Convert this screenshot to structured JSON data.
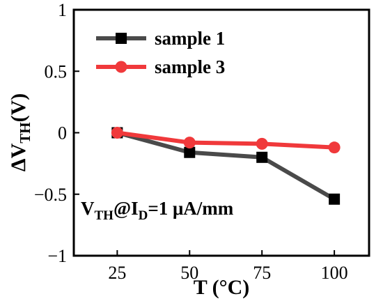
{
  "chart_data": {
    "type": "line",
    "x": [
      25,
      50,
      75,
      100
    ],
    "series": [
      {
        "name": "sample 1",
        "values": [
          0.0,
          -0.16,
          -0.2,
          -0.54
        ],
        "color": "#4a4a4a",
        "marker": "square"
      },
      {
        "name": "sample 3",
        "values": [
          0.0,
          -0.08,
          -0.09,
          -0.12
        ],
        "color": "#f0393b",
        "marker": "circle"
      }
    ],
    "xlim": [
      10,
      112
    ],
    "ylim": [
      -1,
      1
    ],
    "xticks": [
      25,
      50,
      75,
      100
    ],
    "yticks": [
      -1,
      -0.5,
      0,
      0.5,
      1
    ],
    "xtick_labels": [
      "25",
      "50",
      "75",
      "100"
    ],
    "ytick_labels": [
      "−1",
      "−0.5",
      "0",
      "0.5",
      "1"
    ],
    "xlabel": "T (°C)",
    "ylabel": {
      "delta": "ΔV",
      "sub": "TH",
      "rest": "(V)"
    },
    "annotation": {
      "v": "V",
      "vsub": "TH",
      "at": "@I",
      "isub": "D",
      "rest": "=1 μA/mm"
    },
    "legend_position": "top-left",
    "grid": false
  }
}
